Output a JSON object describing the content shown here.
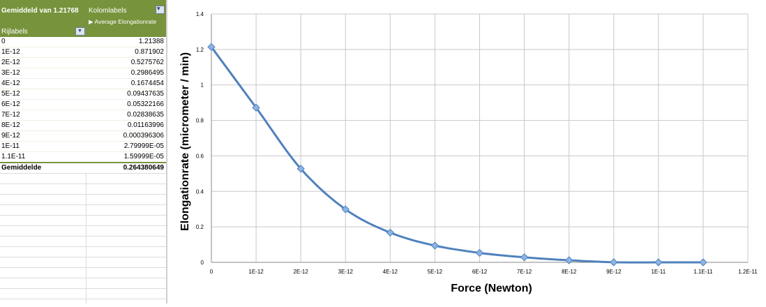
{
  "pivot": {
    "value_field": "Gemiddeld van 1.21768",
    "column_labels": "Kolomlabels",
    "measure": "Average Elongationrate",
    "row_labels": "Rijlabels",
    "rows": [
      {
        "label": "0",
        "value": "1.21388"
      },
      {
        "label": "1E-12",
        "value": "0.871902"
      },
      {
        "label": "2E-12",
        "value": "0.5275762"
      },
      {
        "label": "3E-12",
        "value": "0.2986495"
      },
      {
        "label": "4E-12",
        "value": "0.1674454"
      },
      {
        "label": "5E-12",
        "value": "0.09437635"
      },
      {
        "label": "6E-12",
        "value": "0.05322166"
      },
      {
        "label": "7E-12",
        "value": "0.02838635"
      },
      {
        "label": "8E-12",
        "value": "0.01163996"
      },
      {
        "label": "9E-12",
        "value": "0.000396306"
      },
      {
        "label": "1E-11",
        "value": "2.79999E-05"
      },
      {
        "label": "1.1E-11",
        "value": "1.59999E-05"
      }
    ],
    "total": {
      "label": "Gemiddelde",
      "value": "0.264380649"
    }
  },
  "colors": {
    "header_green": "#77933c",
    "series": "#4f81bd",
    "marker": "#8eb4e3"
  },
  "chart_data": {
    "type": "line",
    "xlabel": "Force (Newton)",
    "ylabel": "Elongationrate (micrometer / min)",
    "x_ticks": [
      "0",
      "1E-12",
      "2E-12",
      "3E-12",
      "4E-12",
      "5E-12",
      "6E-12",
      "7E-12",
      "8E-12",
      "9E-12",
      "1E-11",
      "1.1E-11",
      "1.2E-11"
    ],
    "y_ticks": [
      "0",
      "0.2",
      "0.4",
      "0.6",
      "0.8",
      "1",
      "1.2",
      "1.4"
    ],
    "xlim": [
      0,
      1.2e-11
    ],
    "ylim": [
      0,
      1.4
    ],
    "grid": true,
    "series": [
      {
        "x": [
          0,
          1e-12,
          2e-12,
          3e-12,
          4e-12,
          5e-12,
          6e-12,
          7e-12,
          8e-12,
          9e-12,
          1e-11,
          1.1e-11
        ],
        "values": [
          1.21388,
          0.871902,
          0.5275762,
          0.2986495,
          0.1674454,
          0.09437635,
          0.05322166,
          0.02838635,
          0.01163996,
          0.000396306,
          2.79999e-05,
          1.59999e-05
        ]
      }
    ]
  }
}
